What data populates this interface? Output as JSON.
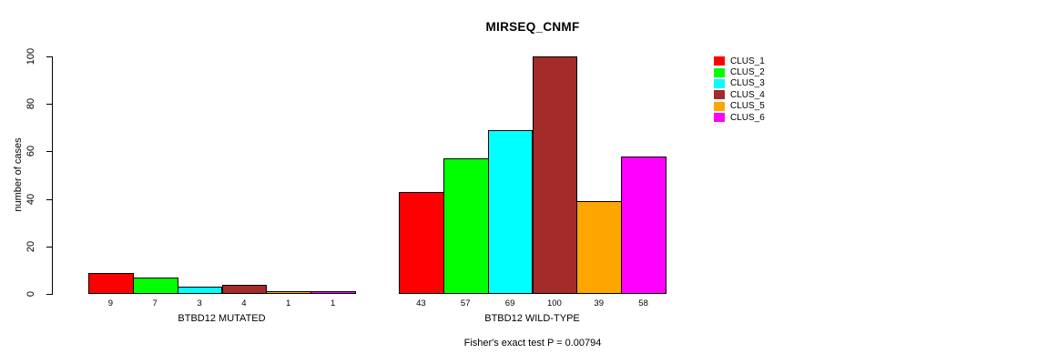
{
  "title": "MIRSEQ_CNMF",
  "chart_data": {
    "type": "bar",
    "title": "MIRSEQ_CNMF",
    "xlabel": "",
    "ylabel": "number of cases",
    "ylim": [
      0,
      100
    ],
    "yticks": [
      0,
      20,
      40,
      60,
      80,
      100
    ],
    "grid": false,
    "legend_position": "right",
    "groups": [
      {
        "label": "BTBD12 MUTATED",
        "values": [
          9,
          7,
          3,
          4,
          1,
          1
        ],
        "value_labels": [
          "9",
          "7",
          "3",
          "4",
          "1",
          "1"
        ]
      },
      {
        "label": "BTBD12 WILD-TYPE",
        "values": [
          43,
          57,
          69,
          100,
          39,
          58
        ],
        "value_labels": [
          "43",
          "57",
          "69",
          "100",
          "39",
          "58"
        ]
      }
    ],
    "series_colors": [
      "#FF0000",
      "#00FF00",
      "#00FFFF",
      "#A52A2A",
      "#FFA500",
      "#FF00FF"
    ],
    "legend": [
      {
        "label": "CLUS_1",
        "color": "#FF0000"
      },
      {
        "label": "CLUS_2",
        "color": "#00FF00"
      },
      {
        "label": "CLUS_3",
        "color": "#00FFFF"
      },
      {
        "label": "CLUS_4",
        "color": "#A52A2A"
      },
      {
        "label": "CLUS_5",
        "color": "#FFA500"
      },
      {
        "label": "CLUS_6",
        "color": "#FF00FF"
      }
    ],
    "annotation": "Fisher's exact test P = 0.00794",
    "axis_color": "#000000",
    "bar_border_color": "#000000",
    "background_color": "#FFFFFF"
  }
}
